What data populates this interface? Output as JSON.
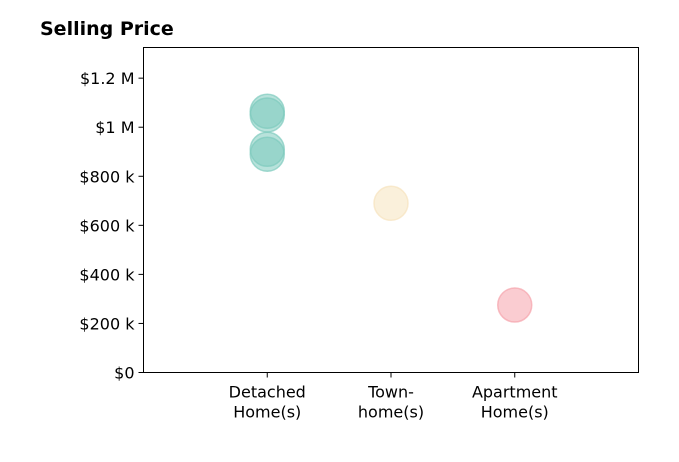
{
  "chart_data": {
    "type": "scatter",
    "title": "Selling Price",
    "xlabel": "",
    "ylabel": "",
    "categories": [
      [
        "Detached",
        "Home(s)"
      ],
      [
        "Town-",
        "home(s)"
      ],
      [
        "Apartment",
        "Home(s)"
      ]
    ],
    "xlim": [
      -1,
      3
    ],
    "ylim": [
      0,
      1325000
    ],
    "yticks": [
      0,
      200000,
      400000,
      600000,
      800000,
      1000000,
      1200000
    ],
    "ytick_labels": [
      "$0",
      "$200 k",
      "$400 k",
      "$600 k",
      "$800 k",
      "$1 M",
      "$1.2 M"
    ],
    "grid": false,
    "colors": {
      "Detached": "#7ecbbd",
      "Town": "#f6e3bd",
      "Apartment": "#f5a3ab"
    },
    "points": [
      {
        "category": 0,
        "y": 1065000,
        "color": "#7ecbbd"
      },
      {
        "category": 0,
        "y": 1050000,
        "color": "#7ecbbd"
      },
      {
        "category": 0,
        "y": 910000,
        "color": "#7ecbbd"
      },
      {
        "category": 0,
        "y": 890000,
        "color": "#7ecbbd"
      },
      {
        "category": 1,
        "y": 690000,
        "color": "#f6e3bd"
      },
      {
        "category": 2,
        "y": 275000,
        "color": "#f5a3ab"
      }
    ]
  }
}
